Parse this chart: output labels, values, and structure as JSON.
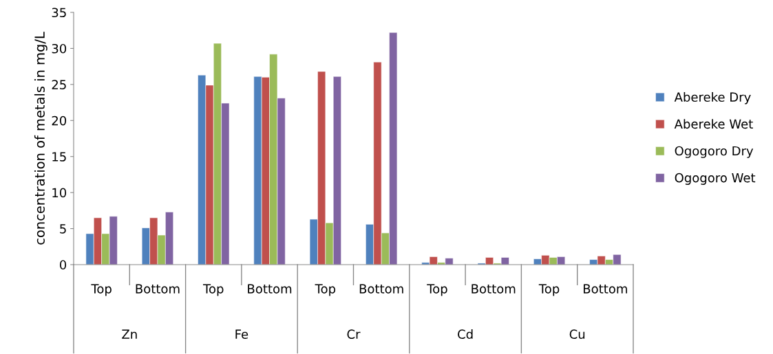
{
  "chart_data": {
    "type": "bar",
    "ylabel": "concentration of metals in mg/L",
    "categories": [
      "Top",
      "Bottom",
      "Top",
      "Bottom",
      "Top",
      "Bottom",
      "Top",
      "Bottom",
      "Top",
      "Bottom"
    ],
    "annotations": [
      "Zn",
      "Fe",
      "Cr",
      "Cd",
      "Cu"
    ],
    "series": [
      {
        "name": "Abereke Dry",
        "color": "#4f81bd",
        "values": [
          4.3,
          5.1,
          26.3,
          26.1,
          6.3,
          5.6,
          0.3,
          0.2,
          0.8,
          0.7
        ]
      },
      {
        "name": "Abereke Wet",
        "color": "#c0504d",
        "values": [
          6.5,
          6.5,
          24.9,
          26.0,
          26.8,
          28.1,
          1.1,
          1.0,
          1.3,
          1.2
        ]
      },
      {
        "name": "Ogogoro Dry",
        "color": "#9bbb59",
        "values": [
          4.3,
          4.1,
          30.7,
          29.2,
          5.8,
          4.4,
          0.3,
          0.2,
          1.0,
          0.7
        ]
      },
      {
        "name": "Ogogoro Wet",
        "color": "#8064a2",
        "values": [
          6.7,
          7.3,
          22.4,
          23.1,
          26.1,
          32.2,
          0.9,
          1.0,
          1.1,
          1.4
        ]
      }
    ],
    "ylim": [
      0,
      35
    ],
    "yticks": [
      0,
      5,
      10,
      15,
      20,
      25,
      30,
      35
    ],
    "grid": false,
    "legend": "right"
  }
}
